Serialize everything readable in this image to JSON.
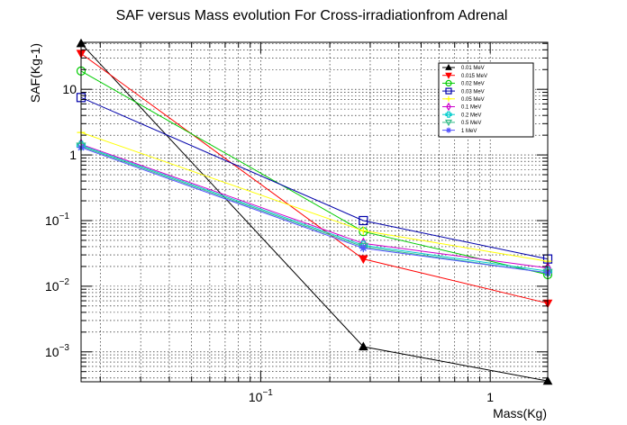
{
  "chart_data": {
    "type": "line",
    "title": "SAF versus Mass evolution For Cross-irradiationfrom Adrenal",
    "xlabel": "Mass(Kg)",
    "ylabel": "SAF(Kg-1)",
    "xscale": "log",
    "yscale": "log",
    "xlim": [
      0.0165,
      1.78
    ],
    "ylim": [
      0.00035,
      52
    ],
    "grid": true,
    "legend_position": "top-right",
    "x": [
      0.0165,
      0.28,
      1.78
    ],
    "x_ticks": [
      {
        "value": 0.1,
        "label": "10",
        "exp": "−1"
      },
      {
        "value": 1,
        "label": "1",
        "exp": ""
      }
    ],
    "y_ticks": [
      {
        "value": 0.001,
        "label": "10",
        "exp": "−3"
      },
      {
        "value": 0.01,
        "label": "10",
        "exp": "−2"
      },
      {
        "value": 0.1,
        "label": "10",
        "exp": "−1"
      },
      {
        "value": 1,
        "label": "1",
        "exp": ""
      },
      {
        "value": 10,
        "label": "10",
        "exp": ""
      }
    ],
    "series": [
      {
        "name": "0.01 MeV",
        "color": "#000000",
        "marker": "triangle-up",
        "values": [
          50,
          0.0012,
          0.00036
        ]
      },
      {
        "name": "0.015 MeV",
        "color": "#ff0000",
        "marker": "triangle-down",
        "values": [
          35,
          0.026,
          0.0055
        ]
      },
      {
        "name": "0.02 MeV",
        "color": "#00cc00",
        "marker": "circle",
        "values": [
          19,
          0.068,
          0.015
        ]
      },
      {
        "name": "0.03 MeV",
        "color": "#0000aa",
        "marker": "square",
        "values": [
          7.5,
          0.1,
          0.026
        ]
      },
      {
        "name": "0.05 MeV",
        "color": "#ffff00",
        "marker": "cross",
        "values": [
          2.2,
          0.07,
          0.024
        ]
      },
      {
        "name": "0.1 MeV",
        "color": "#cc00cc",
        "marker": "diamond",
        "values": [
          1.45,
          0.045,
          0.019
        ]
      },
      {
        "name": "0.2 MeV",
        "color": "#00cccc",
        "marker": "cross-open",
        "values": [
          1.4,
          0.042,
          0.017
        ]
      },
      {
        "name": "0.5 MeV",
        "color": "#33bb88",
        "marker": "triangle-down-open",
        "values": [
          1.35,
          0.04,
          0.016
        ]
      },
      {
        "name": "1 MeV",
        "color": "#5555ff",
        "marker": "star",
        "values": [
          1.3,
          0.038,
          0.016
        ]
      }
    ]
  }
}
